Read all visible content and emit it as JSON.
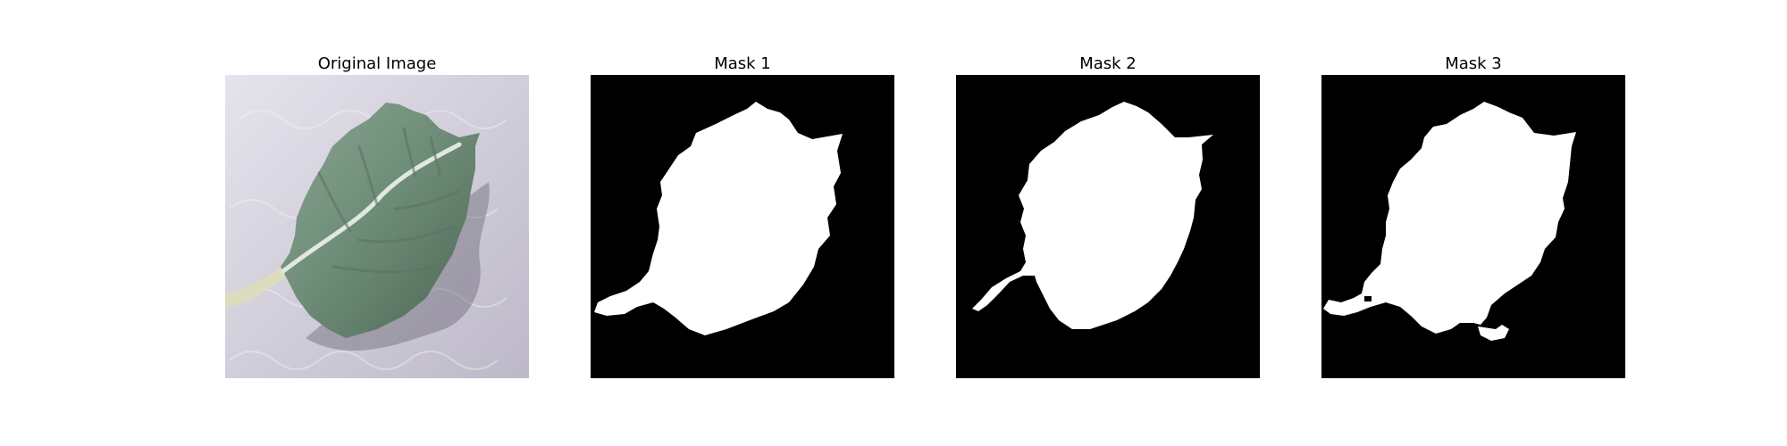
{
  "figure": {
    "panels": [
      {
        "title": "Original Image",
        "content": "leaf-photo"
      },
      {
        "title": "Mask 1",
        "content": "binary-mask"
      },
      {
        "title": "Mask 2",
        "content": "binary-mask"
      },
      {
        "title": "Mask 3",
        "content": "binary-mask"
      }
    ]
  },
  "colors": {
    "mask_background": "#000000",
    "mask_foreground": "#ffffff",
    "leaf_green": "#6f8d78",
    "background_lavender": "#cfcdd9"
  }
}
